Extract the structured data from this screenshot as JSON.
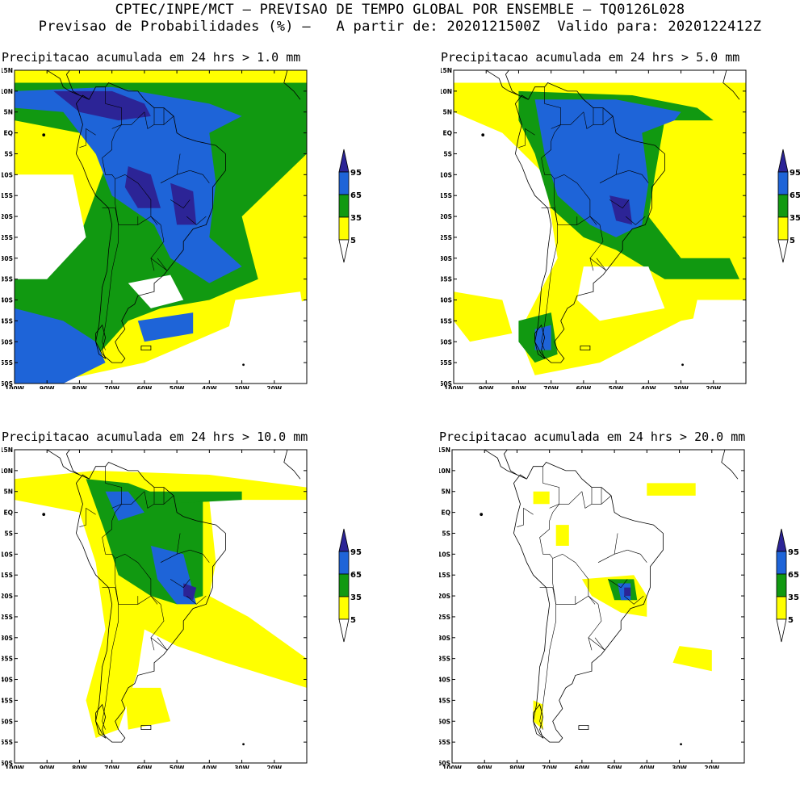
{
  "header": {
    "line1": "CPTEC/INPE/MCT – PREVISAO DE TEMPO GLOBAL POR ENSEMBLE – TQ0126L028",
    "line2": "Previsao de Probabilidades (%) –   A partir de: 2020121500Z  Valido para: 2020122412Z"
  },
  "axes": {
    "lat_labels": [
      "15N",
      "10N",
      "5N",
      "EQ",
      "5S",
      "10S",
      "15S",
      "20S",
      "25S",
      "30S",
      "35S",
      "40S",
      "45S",
      "50S",
      "55S",
      "60S"
    ],
    "lon_labels": [
      "100W",
      "90W",
      "80W",
      "70W",
      "60W",
      "50W",
      "40W",
      "30W",
      "20W"
    ]
  },
  "colorbar": {
    "labels": [
      "95",
      "65",
      "35",
      "5"
    ],
    "colors": {
      "c5": "#ffff00",
      "c35": "#119911",
      "c65": "#1e64d8",
      "c95": "#2c2496",
      "c0": "#ffffff"
    }
  },
  "panels": [
    {
      "title": "Precipitacao acumulada em 24 hrs > 1.0 mm",
      "threshold": "1.0"
    },
    {
      "title": "Precipitacao acumulada em 24 hrs > 5.0 mm",
      "threshold": "5.0"
    },
    {
      "title": "Precipitacao acumulada em 24 hrs > 10.0 mm",
      "threshold": "10.0"
    },
    {
      "title": "Precipitacao acumulada em 24 hrs > 20.0 mm",
      "threshold": "20.0"
    }
  ]
}
